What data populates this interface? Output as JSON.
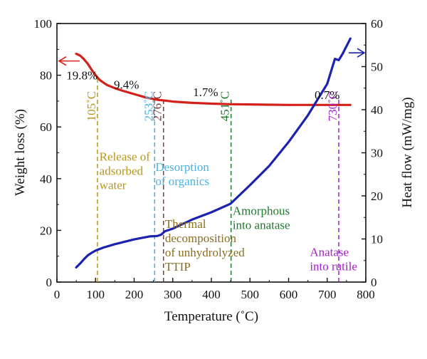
{
  "chart_data": {
    "type": "line",
    "xlabel": "Temperature (˚C)",
    "ylabel_left": "Weight loss (%)",
    "ylabel_right": "Heat flow (mW/mg)",
    "xlim": [
      0,
      800
    ],
    "ylim_left": [
      0,
      100
    ],
    "ylim_right": [
      0,
      60
    ],
    "x_ticks": [
      "0",
      "100",
      "200",
      "300",
      "400",
      "500",
      "600",
      "700",
      "800"
    ],
    "y_left_ticks": [
      "0",
      "20",
      "40",
      "60",
      "80",
      "100"
    ],
    "y_right_ticks": [
      "0",
      "10",
      "20",
      "30",
      "40",
      "50",
      "60"
    ],
    "grid": false,
    "colors": {
      "weight": "#d4201a",
      "heat": "#1c22b0",
      "c105": "#b8961e",
      "c253": "#49b3e4",
      "c276": "#7a3f3a",
      "c451": "#1f7a2e",
      "c730": "#a321c9",
      "phase_text": "#8a6d1e"
    },
    "series": [
      {
        "axis": "left",
        "color": "#d4201a",
        "x": [
          50,
          60,
          70,
          80,
          90,
          100,
          110,
          120,
          130,
          150,
          170,
          200,
          230,
          260,
          280,
          300,
          350,
          400,
          450,
          500,
          550,
          600,
          650,
          700,
          760
        ],
        "y": [
          88.3,
          87.6,
          86.2,
          84.4,
          82.1,
          80.0,
          78.3,
          77.2,
          76.2,
          75.0,
          74.0,
          72.7,
          71.4,
          70.5,
          70.2,
          69.8,
          69.3,
          69.0,
          68.8,
          68.7,
          68.6,
          68.5,
          68.5,
          68.5,
          68.5
        ]
      },
      {
        "axis": "right",
        "color": "#1c22b0",
        "x": [
          50,
          60,
          70,
          80,
          90,
          100,
          120,
          150,
          200,
          240,
          260,
          270,
          280,
          300,
          350,
          400,
          450,
          500,
          550,
          600,
          650,
          700,
          720,
          730,
          740,
          760
        ],
        "y": [
          3.4,
          4.3,
          5.3,
          6.2,
          6.8,
          7.3,
          8.0,
          8.8,
          9.9,
          10.6,
          10.7,
          11.0,
          11.8,
          12.4,
          14.5,
          16.2,
          18.2,
          22.5,
          27.0,
          32.5,
          38.7,
          46.0,
          51.8,
          51.5,
          53.0,
          56.5
        ]
      }
    ],
    "arrows": [
      {
        "axis": "left",
        "label": ""
      },
      {
        "axis": "right",
        "label": ""
      }
    ],
    "weight_loss_labels": [
      {
        "text": "19.8%",
        "x": 65,
        "y": 80
      },
      {
        "text": "9.4%",
        "x": 180,
        "y": 76.5
      },
      {
        "text": "1.7%",
        "x": 385,
        "y": 73.5
      },
      {
        "text": "0.7%",
        "x": 700,
        "y": 72.5
      }
    ],
    "temperature_markers": [
      {
        "x": 105,
        "label": "105˚C",
        "color": "#b8961e",
        "label_y": 68
      },
      {
        "x": 253,
        "label": "253˚C",
        "color": "#49b3e4",
        "label_y": 68
      },
      {
        "x": 276,
        "label": "276˚C",
        "color": "#7a3f3a",
        "label_y": 68
      },
      {
        "x": 451,
        "label": "451˚C",
        "color": "#1f7a2e",
        "label_y": 68
      },
      {
        "x": 730,
        "label": "730˚C",
        "color": "#a321c9",
        "label_y": 68
      }
    ],
    "annotations": [
      {
        "lines": [
          "Release of",
          "adsorbed",
          "water"
        ],
        "color": "#b8961e",
        "x": 110,
        "y": 47
      },
      {
        "lines": [
          "Desorption",
          "of organics"
        ],
        "color": "#49b3e4",
        "x": 255,
        "y": 43
      },
      {
        "lines": [
          "Thermal",
          "decomposition",
          "of unhydrolyzed",
          "TTIP"
        ],
        "color": "#8a6d1e",
        "x": 280,
        "y": 21
      },
      {
        "lines": [
          "Amorphous",
          "into anatase"
        ],
        "color": "#1f7a2e",
        "x": 455,
        "y": 26
      },
      {
        "lines": [
          "Anatase",
          "into rutile"
        ],
        "color": "#a321c9",
        "x": 655,
        "y": 10
      }
    ]
  }
}
